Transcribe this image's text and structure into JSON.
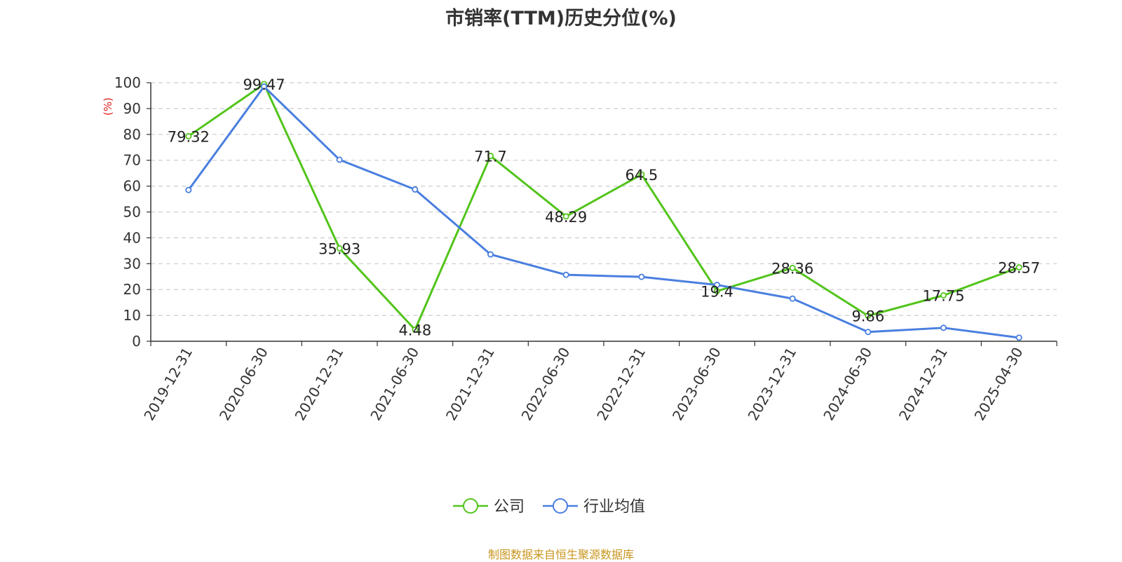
{
  "chart_data": {
    "type": "line",
    "title": "市销率(TTM)历史分位(%)",
    "ylabel": "(%)",
    "xlabel": "",
    "ylim": [
      0,
      100
    ],
    "yticks": [
      0,
      10,
      20,
      30,
      40,
      50,
      60,
      70,
      80,
      90,
      100
    ],
    "grid": true,
    "legend_position": "bottom",
    "categories": [
      "2019-12-31",
      "2020-06-30",
      "2020-12-31",
      "2021-06-30",
      "2021-12-31",
      "2022-06-30",
      "2022-12-31",
      "2023-06-30",
      "2023-12-31",
      "2024-06-30",
      "2024-12-31",
      "2025-04-30"
    ],
    "series": [
      {
        "name": "公司",
        "color": "#52c41a",
        "show_labels": true,
        "values": [
          79.32,
          99.47,
          35.93,
          4.48,
          71.7,
          48.29,
          64.5,
          19.4,
          28.36,
          9.86,
          17.75,
          28.57
        ],
        "labels": [
          "79.32",
          "99.47",
          "35.93",
          "4.48",
          "71.7",
          "48.29",
          "64.5",
          "19.4",
          "28.36",
          "9.86",
          "17.75",
          "28.57"
        ]
      },
      {
        "name": "行业均值",
        "color": "#4a7fdf",
        "show_labels": false,
        "values": [
          58.5,
          98.5,
          70.2,
          58.7,
          33.6,
          25.7,
          24.9,
          21.8,
          16.5,
          3.6,
          5.2,
          1.4
        ]
      }
    ]
  },
  "source_note": "制图数据来自恒生聚源数据库"
}
